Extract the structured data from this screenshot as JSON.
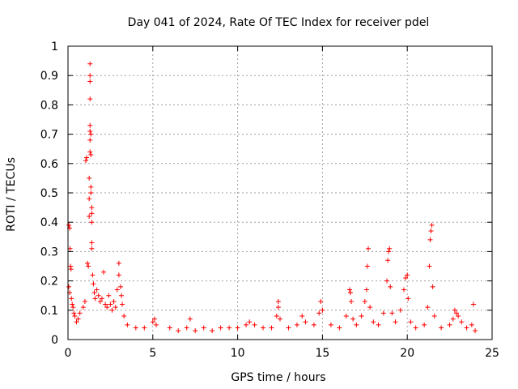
{
  "chart_data": {
    "type": "scatter",
    "title": "Day 041 of 2024, Rate Of TEC Index for receiver pdel",
    "xlabel": "GPS time / hours",
    "ylabel": "ROTI / TECUs",
    "xlim": [
      0,
      25
    ],
    "ylim": [
      0,
      1
    ],
    "xticks": [
      "0",
      "5",
      "10",
      "15",
      "20",
      "25"
    ],
    "yticks": [
      "0",
      "0.1",
      "0.2",
      "0.3",
      "0.4",
      "0.5",
      "0.6",
      "0.7",
      "0.8",
      "0.9",
      "1"
    ],
    "grid": true,
    "marker": "+",
    "color": "#ff0000",
    "series": [
      {
        "points": [
          [
            0.05,
            0.39
          ],
          [
            0.1,
            0.38
          ],
          [
            0.12,
            0.31
          ],
          [
            0.15,
            0.25
          ],
          [
            0.18,
            0.24
          ],
          [
            0.05,
            0.18
          ],
          [
            0.1,
            0.16
          ],
          [
            0.2,
            0.14
          ],
          [
            0.25,
            0.12
          ],
          [
            0.3,
            0.11
          ],
          [
            0.35,
            0.09
          ],
          [
            0.4,
            0.08
          ],
          [
            0.5,
            0.06
          ],
          [
            0.6,
            0.07
          ],
          [
            0.7,
            0.09
          ],
          [
            0.9,
            0.11
          ],
          [
            1.0,
            0.13
          ],
          [
            1.05,
            0.61
          ],
          [
            1.1,
            0.62
          ],
          [
            1.15,
            0.26
          ],
          [
            1.2,
            0.25
          ],
          [
            1.25,
            0.55
          ],
          [
            1.25,
            0.48
          ],
          [
            1.25,
            0.42
          ],
          [
            1.3,
            0.94
          ],
          [
            1.3,
            0.9
          ],
          [
            1.3,
            0.88
          ],
          [
            1.3,
            0.82
          ],
          [
            1.3,
            0.73
          ],
          [
            1.3,
            0.71
          ],
          [
            1.3,
            0.68
          ],
          [
            1.3,
            0.64
          ],
          [
            1.35,
            0.7
          ],
          [
            1.35,
            0.63
          ],
          [
            1.35,
            0.52
          ],
          [
            1.35,
            0.5
          ],
          [
            1.4,
            0.45
          ],
          [
            1.4,
            0.43
          ],
          [
            1.4,
            0.4
          ],
          [
            1.4,
            0.33
          ],
          [
            1.4,
            0.31
          ],
          [
            1.45,
            0.22
          ],
          [
            1.5,
            0.19
          ],
          [
            1.55,
            0.16
          ],
          [
            1.6,
            0.14
          ],
          [
            1.7,
            0.17
          ],
          [
            1.8,
            0.15
          ],
          [
            1.9,
            0.13
          ],
          [
            2.0,
            0.14
          ],
          [
            2.1,
            0.23
          ],
          [
            2.2,
            0.12
          ],
          [
            2.3,
            0.11
          ],
          [
            2.4,
            0.15
          ],
          [
            2.5,
            0.12
          ],
          [
            2.6,
            0.1
          ],
          [
            2.7,
            0.13
          ],
          [
            2.8,
            0.11
          ],
          [
            2.9,
            0.17
          ],
          [
            3.0,
            0.26
          ],
          [
            3.0,
            0.22
          ],
          [
            3.1,
            0.18
          ],
          [
            3.15,
            0.15
          ],
          [
            3.2,
            0.12
          ],
          [
            3.3,
            0.08
          ],
          [
            3.5,
            0.05
          ],
          [
            4.0,
            0.04
          ],
          [
            4.5,
            0.04
          ],
          [
            5.0,
            0.06
          ],
          [
            5.1,
            0.07
          ],
          [
            5.2,
            0.05
          ],
          [
            6.0,
            0.04
          ],
          [
            6.5,
            0.03
          ],
          [
            7.0,
            0.04
          ],
          [
            7.2,
            0.07
          ],
          [
            7.5,
            0.03
          ],
          [
            8.0,
            0.04
          ],
          [
            8.5,
            0.03
          ],
          [
            9.0,
            0.04
          ],
          [
            9.5,
            0.04
          ],
          [
            10.0,
            0.04
          ],
          [
            10.5,
            0.05
          ],
          [
            10.7,
            0.06
          ],
          [
            11.0,
            0.05
          ],
          [
            11.5,
            0.04
          ],
          [
            12.0,
            0.04
          ],
          [
            12.3,
            0.08
          ],
          [
            12.4,
            0.13
          ],
          [
            12.4,
            0.11
          ],
          [
            12.5,
            0.07
          ],
          [
            13.0,
            0.04
          ],
          [
            13.5,
            0.05
          ],
          [
            13.8,
            0.08
          ],
          [
            14.0,
            0.06
          ],
          [
            14.5,
            0.05
          ],
          [
            14.8,
            0.09
          ],
          [
            14.9,
            0.13
          ],
          [
            15.0,
            0.1
          ],
          [
            15.5,
            0.05
          ],
          [
            16.0,
            0.04
          ],
          [
            16.4,
            0.08
          ],
          [
            16.6,
            0.17
          ],
          [
            16.65,
            0.16
          ],
          [
            16.7,
            0.13
          ],
          [
            16.8,
            0.07
          ],
          [
            17.0,
            0.05
          ],
          [
            17.3,
            0.08
          ],
          [
            17.5,
            0.13
          ],
          [
            17.6,
            0.17
          ],
          [
            17.65,
            0.25
          ],
          [
            17.7,
            0.31
          ],
          [
            17.8,
            0.11
          ],
          [
            18.0,
            0.06
          ],
          [
            18.3,
            0.05
          ],
          [
            18.6,
            0.09
          ],
          [
            18.8,
            0.2
          ],
          [
            18.85,
            0.27
          ],
          [
            18.9,
            0.3
          ],
          [
            18.95,
            0.31
          ],
          [
            19.0,
            0.18
          ],
          [
            19.1,
            0.09
          ],
          [
            19.3,
            0.06
          ],
          [
            19.6,
            0.1
          ],
          [
            19.8,
            0.17
          ],
          [
            19.9,
            0.21
          ],
          [
            20.0,
            0.22
          ],
          [
            20.05,
            0.14
          ],
          [
            20.2,
            0.06
          ],
          [
            20.5,
            0.04
          ],
          [
            21.0,
            0.05
          ],
          [
            21.2,
            0.11
          ],
          [
            21.3,
            0.25
          ],
          [
            21.35,
            0.34
          ],
          [
            21.4,
            0.37
          ],
          [
            21.45,
            0.39
          ],
          [
            21.5,
            0.18
          ],
          [
            21.6,
            0.08
          ],
          [
            22.0,
            0.04
          ],
          [
            22.5,
            0.05
          ],
          [
            22.7,
            0.07
          ],
          [
            22.8,
            0.1
          ],
          [
            22.9,
            0.09
          ],
          [
            23.0,
            0.08
          ],
          [
            23.2,
            0.06
          ],
          [
            23.5,
            0.04
          ],
          [
            23.8,
            0.05
          ],
          [
            23.9,
            0.12
          ],
          [
            24.0,
            0.03
          ]
        ]
      }
    ]
  }
}
